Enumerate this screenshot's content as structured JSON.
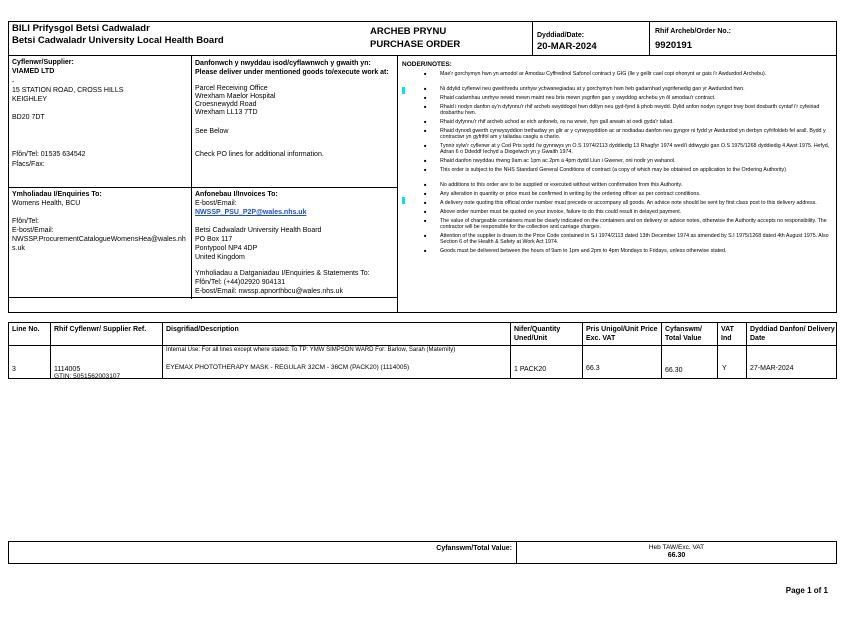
{
  "header": {
    "org_welsh": "BILI Prifysgol Betsi Cadwaladr",
    "org_english": "Betsi Cadwaladr University Local Health Board",
    "doc_welsh": "ARCHEB PRYNU",
    "doc_english": "PURCHASE ORDER",
    "date_label": "Dyddiad/Date:",
    "date_value": "20-MAR-2024",
    "order_label": "Rhif Archeb/Order No.:",
    "order_value": "9920191"
  },
  "supplier": {
    "label": "Cyflenwr/Supplier:",
    "name": "VIAMED LTD",
    "dash": "-",
    "address1": "15 STATION ROAD, CROSS HILLS",
    "address2": "KEIGHLEY",
    "postcode": "BD20 7DT",
    "tel": "Ffôn/Tel:  01535 634542",
    "fax": "Ffacs/Fax:"
  },
  "delivery": {
    "label": "Danfonwch y nwyddau isod/cyflawnwch y gwaith yn: Please deliver under mentioned goods to/execute work at:",
    "lines": [
      "Parcel Receiving Office",
      "Wrexham Maelor Hospital",
      "Croesnewydd Road",
      "Wrexham LL13 7TD"
    ],
    "see_below": "See Below",
    "check": "Check PO lines for additional information."
  },
  "enquiries": {
    "label": "Ymholiadau I/Enquiries To:",
    "name": "Womens Health, BCU",
    "tel": "Ffôn/Tel:",
    "email_label": "E-bost/Email:",
    "email": "NWSSP.ProcurementCatalogueWomensHea@wales.nhs.uk"
  },
  "invoices": {
    "label": "Anfonebau I/Invoices To:",
    "email_label": "E-bost/Email:",
    "email": "NWSSP_PSU_P2P@wales.nhs.uk",
    "lines": [
      "Betsi Cadwaladr University Health Board",
      "PO Box 117",
      "Pontypool NP4 4DP",
      "United Kingdom"
    ],
    "statements_label": "Ymholiadau a Datganiadau I/Enquiries & Statements To:",
    "statements_tel": "Ffôn/Tel: (+44)02920 904131",
    "statements_email": "E-bost/Email: nwssp.apnorthbcu@wales.nhs.uk"
  },
  "notes": {
    "title": "NODER/NOTES:",
    "items": [
      "Mae'r gorchymyn hwn yn amodol ar Amodau Cyffredinol Safonol contract y GIG (lle y gellir cael copi ohonynt ar gais i'r Awdurdod Archebu).",
      "Ni ddylid cyflenwi neu gweithredu unrhyw ychwanegiadau at y gorchymyn hwn heb gadarnhad ysgrifenedig gan yr Awdurdod hwn.",
      "Rhaid cadarnhau unrhyw newid mewn maint neu bris mewn ysgrifen gan y swyddog archebu yn ôl amodau'r contract.",
      "Rhaid i nodyn danfon sy'n dyfynnu'r rhif archeb swyddogol hwn ddilyn neu gyd-fynd â phob nwydd. Dylid anfon nodyn cyngor trwy bost dosbarth cyntaf i'r cyfeiriad dosbarthu hwn.",
      "Rhaid dyfynnu'r rhif archeb uchod ar eich anfoneb, os na wneir, hyn gall arwain at oedi gyda'r taliad.",
      "Rhaid dynodi gwerth cynwysyddion trethadwy yn glir ar y cynwysyddion ac ar nodiadau danfon neu gyngor ni fydd yr Awdurdod yn derbyn cyfrifoldeb fel arall. Bydd y contractwr yn gyfrifol am y taliadau casglu a chario.",
      "Tynnir sylw'r cyflenwr at y Cod Pris sydd i'w gynnwys yn O.S 1974/2113 dyddiedig 13 Rhagfyr 1974 wedi'i ddiwygio gan O.S 1975/1268 dyddiedig 4 Awst 1975. Hefyd, Adran 6 o Ddeddf Iechyd a Diogelwch yn y Gwaith 1974.",
      "Rhaid danfon nwyddau rhwng 9am ac 1pm ac 2pm a 4pm dydd Llun i Gwener, oni nodir yn wahanol.",
      "This order is subject to the NHS Standard General Conditions of contract (a copy of which may be obtained on application to the Ordering Authority)",
      "No additions to this order are to be supplied or executed without written confirmation from this Authority.",
      "Any alteration in quantity or price must be confirmed in writing by the ordering officer as per contract conditions.",
      "A delivery note quoting this official order number must precede or accompany all goods. An advice note should be sent by first class post to this delivery address.",
      "Above order number must be quoted on your invoice, failure to do this could result in delayed payment.",
      "The value of chargeable containers must be clearly indicated on the containers and on delivery or advice notes, otherwise the Authority accepts no responsibility. The contractor will be responsible for the collection and carriage charges.",
      "Attention of the supplier is drawn to the Price Code contained in S.I 1974/2113 dated 13th December 1974 as amended by S.I 1975/1268 dated 4th August 1975. Also Section 6 of the Health & Safety at Work Act 1974.",
      "Goods must be delivered between the hours of 9am to 1pm and 2pm to 4pm Mondays to Fridays, unless otherwise stated."
    ]
  },
  "lines_table": {
    "headers": [
      "Line No.",
      "Rhif Cyflenwr/ Supplier Ref.",
      "Disgrifiad/Description",
      "Nifer/Quantity Uned/Unit",
      "Pris Unigol/Unit Price Exc. VAT",
      "Cyfanswm/ Total Value",
      "VAT Ind",
      "Dyddiad Danfon/ Delivery Date"
    ],
    "rows": [
      {
        "line": "3",
        "ref": "1114005",
        "gtin": "GTIN: 5051562003107",
        "note": "Internal Use: For all lines except where stated: To TP: YMW SIMPSON WARD For: Barlow, Sarah (Maternity)",
        "description": "EYEMAX PHOTOTHERAPY MASK - REGULAR 32CM - 36CM (PACK20) (1114005)",
        "quantity": "1 PACK20",
        "unit_price": "66.3",
        "total": "66.30",
        "vat": "Y",
        "delivery_date": "27-MAR-2024"
      }
    ]
  },
  "totals": {
    "label": "Cyfanswm/Total Value:",
    "exc_label": "Heb TAW/Exc. VAT",
    "value": "66.30"
  },
  "footer": {
    "page": "Page 1 of 1"
  },
  "colors": {
    "link": "#1a4fd0",
    "marker": "#00e5ee"
  }
}
